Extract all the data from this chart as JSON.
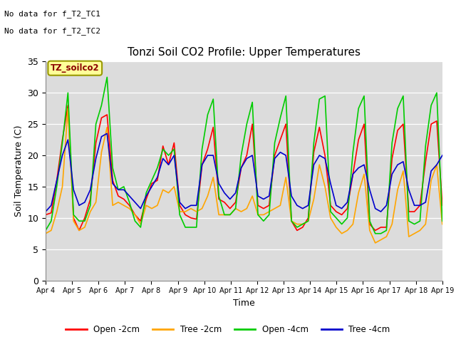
{
  "title": "Tonzi Soil CO2 Profile: Upper Temperatures",
  "ylabel": "Soil Temperature (C)",
  "xlabel": "Time",
  "annotation_lines": [
    "No data for f_T2_TC1",
    "No data for f_T2_TC2"
  ],
  "legend_box_label": "TZ_soilco2",
  "ylim": [
    0,
    35
  ],
  "xlim": [
    0,
    15
  ],
  "plot_bg_color": "#dcdcdc",
  "fig_bg_color": "#ffffff",
  "series_labels": [
    "Open -2cm",
    "Tree -2cm",
    "Open -4cm",
    "Tree -4cm"
  ],
  "series_colors": [
    "#ff0000",
    "#ffa500",
    "#00cc00",
    "#0000cc"
  ],
  "x_tick_labels": [
    "Apr 4",
    "Apr 5",
    "Apr 6",
    "Apr 7",
    "Apr 8",
    "Apr 9",
    "Apr 10",
    "Apr 11",
    "Apr 12",
    "Apr 13",
    "Apr 14",
    "Apr 15",
    "Apr 16",
    "Apr 17",
    "Apr 18",
    "Apr 19"
  ],
  "yticks": [
    0,
    5,
    10,
    15,
    20,
    25,
    30,
    35
  ],
  "open_2cm": [
    10.5,
    10.8,
    16.0,
    22.5,
    28.0,
    10.0,
    8.0,
    10.0,
    13.0,
    22.0,
    26.0,
    26.5,
    16.0,
    13.5,
    13.0,
    12.0,
    10.5,
    9.5,
    13.0,
    15.5,
    16.0,
    21.5,
    18.5,
    22.0,
    12.0,
    10.5,
    10.0,
    9.8,
    18.5,
    21.0,
    24.5,
    13.0,
    12.5,
    11.5,
    12.5,
    18.0,
    20.0,
    25.0,
    12.0,
    11.5,
    12.0,
    20.0,
    22.5,
    25.0,
    9.5,
    8.0,
    8.5,
    10.0,
    20.5,
    24.5,
    20.0,
    12.0,
    11.0,
    10.5,
    11.5,
    17.0,
    22.5,
    25.0,
    9.0,
    8.0,
    8.5,
    8.5,
    19.5,
    24.0,
    25.0,
    11.0,
    11.0,
    12.0,
    19.0,
    25.0,
    25.5,
    12.0
  ],
  "tree_2cm": [
    7.5,
    8.0,
    11.0,
    15.0,
    27.5,
    9.5,
    8.0,
    8.5,
    11.0,
    12.5,
    20.5,
    24.5,
    12.0,
    12.5,
    12.0,
    11.5,
    10.5,
    9.0,
    12.0,
    11.5,
    12.0,
    14.5,
    14.0,
    15.0,
    11.0,
    11.0,
    11.5,
    11.0,
    11.5,
    13.5,
    16.5,
    10.5,
    10.5,
    10.5,
    11.5,
    11.0,
    11.5,
    13.5,
    10.5,
    10.5,
    11.0,
    11.5,
    12.0,
    16.5,
    9.5,
    9.0,
    9.0,
    9.5,
    13.0,
    18.5,
    15.0,
    10.0,
    8.5,
    7.5,
    8.0,
    9.0,
    14.0,
    17.0,
    8.0,
    6.0,
    6.5,
    7.0,
    9.0,
    14.5,
    17.5,
    7.0,
    7.5,
    8.0,
    9.0,
    16.0,
    18.5,
    9.0
  ],
  "open_4cm": [
    8.0,
    9.5,
    15.0,
    22.0,
    30.0,
    10.5,
    9.5,
    9.5,
    12.0,
    25.0,
    28.0,
    32.5,
    18.0,
    14.5,
    15.0,
    12.5,
    9.5,
    8.5,
    14.0,
    16.0,
    18.0,
    21.0,
    20.0,
    21.0,
    10.5,
    8.5,
    8.5,
    8.5,
    21.0,
    26.5,
    29.0,
    13.5,
    10.5,
    10.5,
    11.5,
    20.0,
    25.0,
    28.5,
    10.5,
    9.5,
    10.5,
    22.0,
    26.0,
    29.5,
    9.5,
    8.5,
    9.0,
    9.5,
    22.0,
    29.0,
    29.5,
    11.0,
    10.0,
    9.0,
    10.0,
    20.5,
    27.5,
    29.5,
    9.5,
    7.5,
    7.5,
    8.0,
    22.0,
    27.5,
    29.5,
    9.5,
    9.0,
    9.5,
    21.5,
    28.0,
    30.0,
    9.5
  ],
  "tree_4cm": [
    11.0,
    12.0,
    16.0,
    20.0,
    22.5,
    14.5,
    12.0,
    12.5,
    14.5,
    19.5,
    23.0,
    23.5,
    15.5,
    14.5,
    14.5,
    13.5,
    12.5,
    11.5,
    13.5,
    15.0,
    16.5,
    19.5,
    18.5,
    20.0,
    12.5,
    11.5,
    12.0,
    12.0,
    18.5,
    20.0,
    20.0,
    15.5,
    14.0,
    13.0,
    14.0,
    18.0,
    19.5,
    20.0,
    13.5,
    13.0,
    13.5,
    19.5,
    20.5,
    20.0,
    13.5,
    12.0,
    11.5,
    12.0,
    18.5,
    20.0,
    19.5,
    15.5,
    12.0,
    11.5,
    12.5,
    17.0,
    18.0,
    18.5,
    14.5,
    11.5,
    11.0,
    12.0,
    17.0,
    18.5,
    19.0,
    14.5,
    12.0,
    12.0,
    12.5,
    17.5,
    18.5,
    20.0
  ]
}
